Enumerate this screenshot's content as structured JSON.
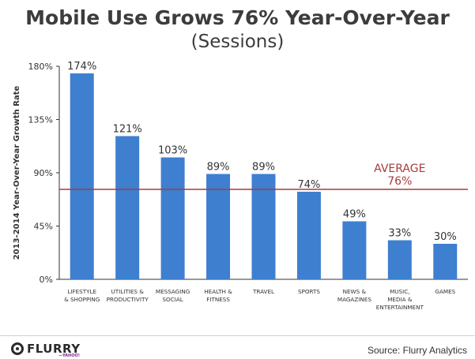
{
  "header": {
    "title": "Mobile Use Grows 76% Year-Over-Year",
    "subtitle": "(Sessions)"
  },
  "footer": {
    "logo_text": "FLURRY",
    "logo_sub": "—YAHOO!",
    "source": "Source: Flurry Analytics"
  },
  "chart_data": {
    "type": "bar",
    "ylabel": "2013-2014 Year-Over-Year Growth Rate",
    "ylim": [
      0,
      180
    ],
    "yticks": [
      0,
      45,
      90,
      135,
      180
    ],
    "ytick_labels": [
      "0%",
      "45%",
      "90%",
      "135%",
      "180%"
    ],
    "categories": [
      [
        "LIFESTYLE",
        "& SHOPPING"
      ],
      [
        "UTILITIES &",
        "PRODUCTIVITY"
      ],
      [
        "MESSAGING",
        "SOCIAL"
      ],
      [
        "HEALTH &",
        "FITNESS"
      ],
      [
        "TRAVEL"
      ],
      [
        "SPORTS"
      ],
      [
        "NEWS &",
        "MAGAZINES"
      ],
      [
        "MUSIC,",
        "MEDIA &",
        "ENTERTAINMENT"
      ],
      [
        "GAMES"
      ]
    ],
    "values": [
      174,
      121,
      103,
      89,
      89,
      74,
      49,
      33,
      30
    ],
    "data_labels": [
      "174%",
      "121%",
      "103%",
      "89%",
      "89%",
      "74%",
      "49%",
      "33%",
      "30%"
    ],
    "bar_color": "#3f7fd0",
    "average": {
      "value": 76,
      "label_line1": "AVERAGE",
      "label_line2": "76%",
      "color": "#a83a3a"
    },
    "grid": false
  }
}
